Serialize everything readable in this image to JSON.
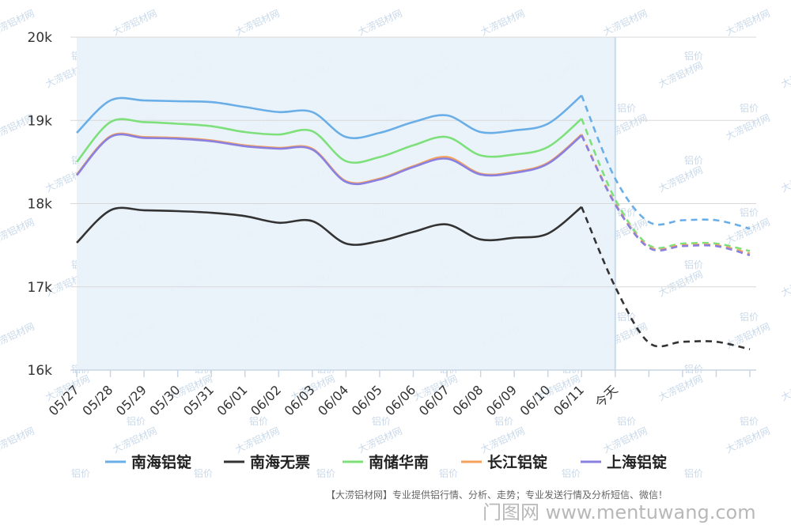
{
  "chart_data": {
    "type": "line",
    "ylim": [
      16000,
      20000
    ],
    "y_ticks": [
      "16k",
      "17k",
      "18k",
      "19k",
      "20k"
    ],
    "y_tick_values": [
      16000,
      17000,
      18000,
      19000,
      20000
    ],
    "categories": [
      "05/27",
      "05/28",
      "05/29",
      "05/30",
      "05/31",
      "06/01",
      "06/02",
      "06/03",
      "06/04",
      "06/05",
      "06/06",
      "06/07",
      "06/08",
      "06/09",
      "06/10",
      "06/11",
      "今天",
      "",
      "",
      "",
      ""
    ],
    "today_index": 16,
    "forecast_from_index": 15,
    "grid": true,
    "legend_position": "bottom",
    "series": [
      {
        "name": "南海铝锭",
        "color": "#6aaee8",
        "values": [
          18850,
          19240,
          19240,
          19230,
          19220,
          19160,
          19100,
          19100,
          18800,
          18850,
          18980,
          19060,
          18860,
          18880,
          18960,
          19300,
          18300,
          17780,
          17800,
          17800,
          17700
        ]
      },
      {
        "name": "南海无票",
        "color": "#333333",
        "values": [
          17530,
          17920,
          17920,
          17910,
          17890,
          17850,
          17770,
          17790,
          17520,
          17550,
          17660,
          17750,
          17570,
          17590,
          17640,
          17960,
          17000,
          16330,
          16340,
          16340,
          16250
        ]
      },
      {
        "name": "南储华南",
        "color": "#7de07a",
        "values": [
          18500,
          18980,
          18980,
          18960,
          18930,
          18860,
          18830,
          18870,
          18510,
          18560,
          18700,
          18800,
          18580,
          18590,
          18680,
          19020,
          18050,
          17500,
          17520,
          17520,
          17430
        ]
      },
      {
        "name": "长江铝锭",
        "color": "#f5a25d",
        "values": [
          18350,
          18810,
          18800,
          18790,
          18760,
          18700,
          18670,
          18660,
          18270,
          18300,
          18450,
          18560,
          18360,
          18380,
          18490,
          18830,
          18000,
          17480,
          17500,
          17500,
          17400
        ]
      },
      {
        "name": "上海铝锭",
        "color": "#8a80e0",
        "values": [
          18340,
          18800,
          18790,
          18780,
          18750,
          18690,
          18660,
          18650,
          18260,
          18290,
          18440,
          18540,
          18350,
          18370,
          18480,
          18820,
          17990,
          17470,
          17490,
          17490,
          17380
        ]
      }
    ]
  },
  "footer": {
    "note": "【大涝铝材网】专业提供铝行情、分析、走势；专业发送行情及分析短信、微信！",
    "site_mark": "门图网 www.mentuwang.com"
  },
  "watermark": {
    "brand": "大涝铝材网",
    "word": "铝价"
  }
}
